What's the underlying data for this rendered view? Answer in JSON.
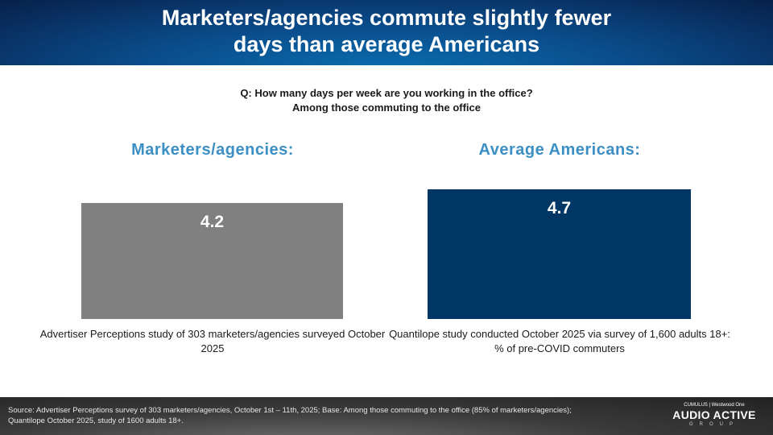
{
  "header": {
    "title_line1": "Marketers/agencies commute slightly fewer",
    "title_line2": "days than average Americans"
  },
  "question": {
    "line1": "Q: How many days per week are you working in the office?",
    "line2": "Among those commuting to the office"
  },
  "chart_data": {
    "type": "bar",
    "categories": [
      "Marketers/agencies:",
      "Average Americans:"
    ],
    "values": [
      4.2,
      4.7
    ],
    "value_labels": [
      "4.2",
      "4.7"
    ],
    "colors": [
      "#808080",
      "#003764"
    ],
    "ylim": [
      0,
      4.7
    ],
    "captions": [
      "Advertiser Perceptions study of 303 marketers/agencies surveyed October 2025",
      "Quantilope study conducted October 2025 via survey of 1,600 adults 18+: % of pre-COVID commuters"
    ],
    "grid": false
  },
  "footer": {
    "source": "Source: Advertiser Perceptions survey of 303 marketers/agencies, October 1st – 11th, 2025; Base: Among those commuting to the office (85% of marketers/agencies); Quantilope October 2025, study of 1600 adults 18+.",
    "logo": {
      "top": "CUMULUS | Westwood One",
      "main": "AUDIO ACTIVE",
      "sub": "GROUP"
    }
  }
}
